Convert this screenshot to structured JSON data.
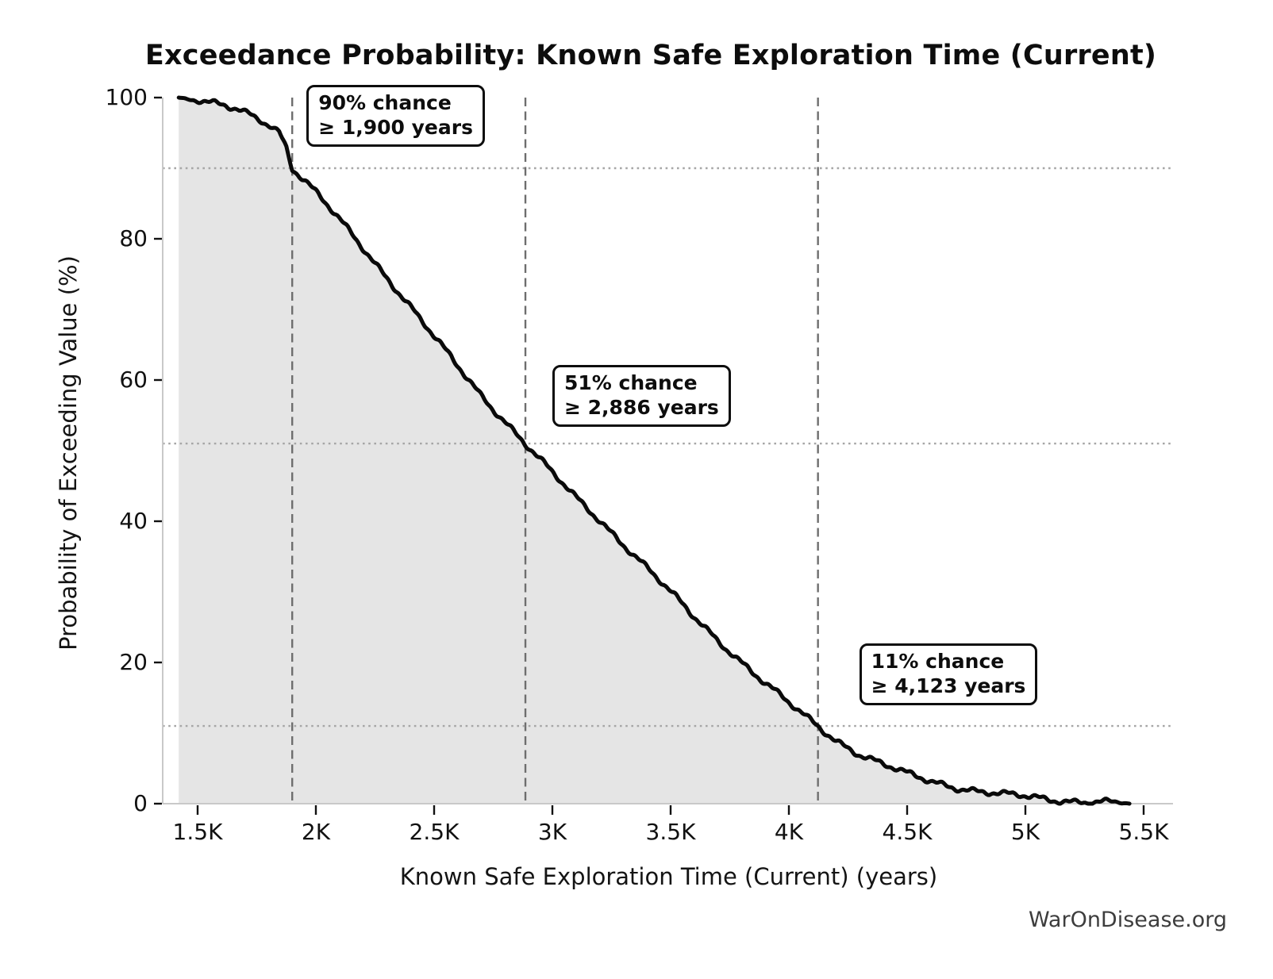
{
  "title": "Exceedance Probability: Known Safe Exploration Time (Current)",
  "watermark": "WarOnDisease.org",
  "colors": {
    "curve": "#0a0a0a",
    "fill": "#e5e5e5",
    "dashed_guide": "#6e6e6e",
    "dotted_guide": "#a6a6a6",
    "spine": "#c9c9c9",
    "tick_mark": "#111111",
    "text": "#111111",
    "watermark_text": "#3d3d3d",
    "annotation_border": "#0d0d0d",
    "annotation_bg": "#ffffff"
  },
  "annotations": [
    {
      "line1": "90% chance",
      "line2": "≥ 1,900 years",
      "years": 1900,
      "percent": 90
    },
    {
      "line1": "51% chance",
      "line2": "≥ 2,886 years",
      "years": 2886,
      "percent": 51
    },
    {
      "line1": "11% chance",
      "line2": "≥ 4,123 years",
      "years": 4123,
      "percent": 11
    }
  ],
  "chart_data": {
    "type": "area",
    "title": "Exceedance Probability: Known Safe Exploration Time (Current)",
    "xlabel": "Known Safe Exploration Time (Current) (years)",
    "ylabel": "Probability of Exceeding Value (%)",
    "xlim": [
      1352,
      5624
    ],
    "ylim": [
      0,
      100
    ],
    "grid": "quantile guides only",
    "legend": "none",
    "x_ticks": [
      {
        "label": "1.5K",
        "value": 1500
      },
      {
        "label": "2K",
        "value": 2000
      },
      {
        "label": "2.5K",
        "value": 2500
      },
      {
        "label": "3K",
        "value": 3000
      },
      {
        "label": "3.5K",
        "value": 3500
      },
      {
        "label": "4K",
        "value": 4000
      },
      {
        "label": "4.5K",
        "value": 4500
      },
      {
        "label": "5K",
        "value": 5000
      },
      {
        "label": "5.5K",
        "value": 5500
      }
    ],
    "y_ticks": [
      {
        "label": "100",
        "value": 100
      },
      {
        "label": "80",
        "value": 80
      },
      {
        "label": "60",
        "value": 60
      },
      {
        "label": "40",
        "value": 40
      },
      {
        "label": "20",
        "value": 20
      },
      {
        "label": "0",
        "value": 0
      }
    ],
    "quantiles": [
      {
        "percent": 90,
        "years": 1900
      },
      {
        "percent": 51,
        "years": 2886
      },
      {
        "percent": 11,
        "years": 4123
      }
    ],
    "curve_points": [
      [
        1420,
        100.0
      ],
      [
        1450,
        99.8
      ],
      [
        1500,
        99.5
      ],
      [
        1560,
        99.1
      ],
      [
        1620,
        98.7
      ],
      [
        1670,
        98.3
      ],
      [
        1720,
        97.7
      ],
      [
        1770,
        96.9
      ],
      [
        1810,
        96.1
      ],
      [
        1845,
        95.2
      ],
      [
        1875,
        93.0
      ],
      [
        1900,
        90.0
      ],
      [
        1950,
        88.3
      ],
      [
        2000,
        86.5
      ],
      [
        2100,
        82.7
      ],
      [
        2200,
        78.7
      ],
      [
        2300,
        74.6
      ],
      [
        2400,
        70.4
      ],
      [
        2500,
        66.1
      ],
      [
        2600,
        61.9
      ],
      [
        2700,
        57.8
      ],
      [
        2800,
        54.2
      ],
      [
        2886,
        51.0
      ],
      [
        3000,
        46.8
      ],
      [
        3100,
        43.3
      ],
      [
        3200,
        40.2
      ],
      [
        3300,
        36.8
      ],
      [
        3400,
        33.4
      ],
      [
        3500,
        29.9
      ],
      [
        3600,
        26.4
      ],
      [
        3700,
        23.2
      ],
      [
        3800,
        20.1
      ],
      [
        3900,
        17.0
      ],
      [
        4000,
        14.2
      ],
      [
        4060,
        12.6
      ],
      [
        4123,
        11.0
      ],
      [
        4200,
        9.0
      ],
      [
        4300,
        7.0
      ],
      [
        4400,
        5.5
      ],
      [
        4500,
        4.2
      ],
      [
        4600,
        3.2
      ],
      [
        4700,
        2.4
      ],
      [
        4800,
        1.8
      ],
      [
        4900,
        1.3
      ],
      [
        5000,
        1.0
      ],
      [
        5100,
        0.6
      ],
      [
        5200,
        0.4
      ],
      [
        5300,
        0.3
      ],
      [
        5380,
        0.2
      ],
      [
        5440,
        0.0
      ]
    ]
  }
}
